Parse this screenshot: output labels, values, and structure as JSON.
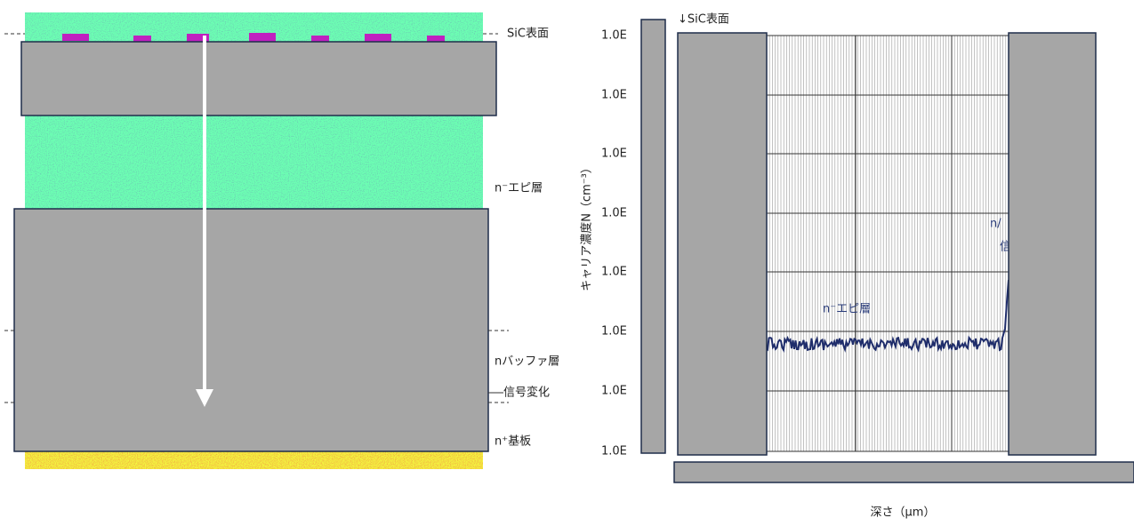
{
  "left": {
    "labels": [
      "SiC表面",
      "n⁻エピ層",
      "nバッファ層",
      "信号変化",
      "n⁺基板"
    ]
  },
  "right": {
    "surface_label": "↓SiC表面",
    "y_axis_label": "キャリア濃度N（cm⁻³）",
    "y_ticks": [
      "1.0E",
      "1.0E",
      "1.0E",
      "1.0E",
      "1.0E",
      "1.0E",
      "1.0E",
      "1.0E"
    ],
    "annotation": "n⁻エピ層",
    "partial_labels": [
      "n/",
      "信"
    ],
    "x_axis_label": "深さ（μm）"
  }
}
